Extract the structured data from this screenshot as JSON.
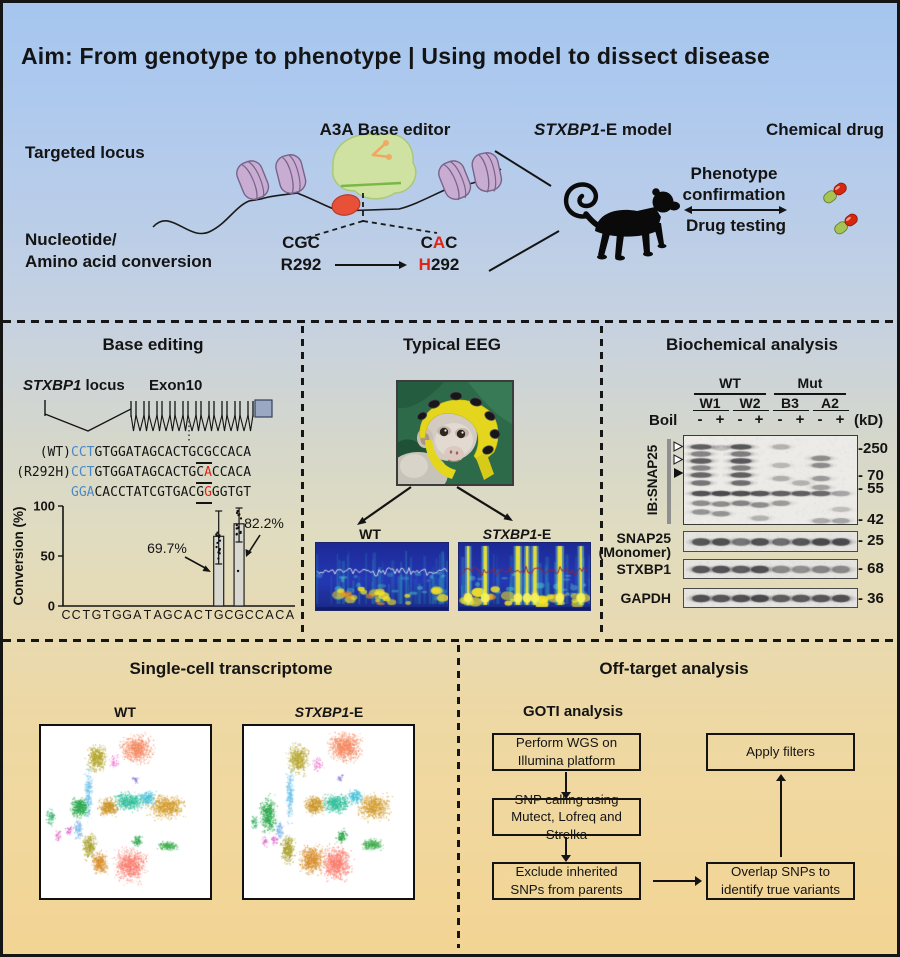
{
  "title": "Aim: From genotype to phenotype | Using model to dissect disease",
  "top": {
    "targeted_locus": "Targeted locus",
    "editor_label": "A3A Base editor",
    "conversion_label": [
      "Nucleotide/",
      "Amino acid conversion"
    ],
    "codon_wt": "CGC",
    "codon_mut": {
      "pre": "C",
      "red": "A",
      "post": "C"
    },
    "aa_wt": "R292",
    "aa_mut": {
      "red": "H",
      "post": "292"
    },
    "model_label": {
      "italic": "STXBP1",
      "rest": "-E model"
    },
    "chemical_drug": "Chemical drug",
    "phenotype_confirmation": [
      "Phenotype",
      "confirmation"
    ],
    "drug_testing": "Drug testing"
  },
  "base_editing": {
    "title": "Base editing",
    "locus_label": {
      "italic": "STXBP1",
      "rest": " locus"
    },
    "exon_label": "Exon10",
    "seq_lines": [
      {
        "prefix": "(WT)",
        "segments": [
          {
            "t": "CCT",
            "c": "blue"
          },
          {
            "t": "GTGGATAGCACTG"
          },
          {
            "t": "CG",
            "u": true
          },
          {
            "t": "CCACA"
          }
        ]
      },
      {
        "prefix": "(R292H)",
        "segments": [
          {
            "t": "CCT",
            "c": "blue"
          },
          {
            "t": "GTGGATAGCACTG"
          },
          {
            "t": "C",
            "u": true
          },
          {
            "t": "A",
            "u": true,
            "c": "red"
          },
          {
            "t": "CCACA"
          }
        ]
      },
      {
        "prefix": "",
        "segments": [
          {
            "t": "GGA",
            "c": "blue"
          },
          {
            "t": "CACCTATCGTGAC"
          },
          {
            "t": "G",
            "u": true
          },
          {
            "t": "G",
            "u": true,
            "c": "red"
          },
          {
            "t": "GGTGT"
          }
        ]
      }
    ]
  },
  "chart_data": {
    "type": "bar",
    "title": "",
    "ylabel": "Conversion (%)",
    "xlabel": "",
    "ylim": [
      0,
      100
    ],
    "yticks": [
      0,
      50,
      100
    ],
    "grid": false,
    "bar_color": "#d9d8d0",
    "categories": [
      "C",
      "C",
      "T",
      "G",
      "T",
      "G",
      "G",
      "A",
      "T",
      "A",
      "G",
      "C",
      "A",
      "C",
      "T",
      "G",
      "C",
      "G",
      "C",
      "C",
      "A",
      "C",
      "A"
    ],
    "bars": [
      {
        "index": 15,
        "value": 69.7,
        "err_low": 42,
        "err_high": 95,
        "label": "69.7%"
      },
      {
        "index": 17,
        "value": 82.2,
        "err_low": 64,
        "err_high": 98,
        "label": "82.2%"
      }
    ]
  },
  "eeg": {
    "title": "Typical EEG",
    "wt_label": "WT",
    "mut_label": {
      "italic": "STXBP1",
      "rest": "-E"
    },
    "bg_color": "#2434ad",
    "blob_color": "#f2e32c",
    "spectrograms": [
      {
        "name": "wt",
        "seed": 5,
        "trace_color": "#d4d7e6",
        "spikes": []
      },
      {
        "name": "mut",
        "seed": 11,
        "trace_color": "#93253c",
        "spikes": [
          0.07,
          0.2,
          0.45,
          0.52,
          0.58,
          0.77,
          0.93
        ]
      }
    ]
  },
  "biochemical": {
    "title": "Biochemical analysis",
    "groups": [
      {
        "label": "WT",
        "samples": [
          "W1",
          "W2"
        ]
      },
      {
        "label": "Mut",
        "samples": [
          "B3",
          "A2"
        ]
      }
    ],
    "boil_label": "Boil",
    "boil_signs": [
      "-",
      "+",
      "-",
      "+",
      "-",
      "+",
      "-",
      "+"
    ],
    "kd_label": "(kD)",
    "ib_label": "IB:SNAP25",
    "main_markers": [
      "-250",
      "- 70",
      "- 55",
      "- 42"
    ],
    "lanes": [
      {
        "bands": [
          [
            0.09,
            0.8,
            1.2
          ],
          [
            0.17,
            0.55,
            1.15
          ],
          [
            0.25,
            0.8,
            1.2
          ],
          [
            0.33,
            0.55,
            1.1
          ],
          [
            0.41,
            0.75,
            1.2
          ],
          [
            0.5,
            0.65,
            1.1
          ],
          [
            0.62,
            0.9,
            1.05
          ],
          [
            0.73,
            0.5,
            1
          ],
          [
            0.83,
            0.45,
            1
          ]
        ]
      },
      {
        "bands": [
          [
            0.1,
            0.22,
            1
          ],
          [
            0.62,
            0.95,
            1.05
          ],
          [
            0.74,
            0.5,
            1
          ],
          [
            0.85,
            0.45,
            1
          ]
        ]
      },
      {
        "bands": [
          [
            0.09,
            0.85,
            1.2
          ],
          [
            0.17,
            0.6,
            1.15
          ],
          [
            0.25,
            0.85,
            1.2
          ],
          [
            0.33,
            0.6,
            1.1
          ],
          [
            0.41,
            0.8,
            1.2
          ],
          [
            0.5,
            0.7,
            1.1
          ],
          [
            0.62,
            0.9,
            1.05
          ],
          [
            0.73,
            0.55,
            1
          ]
        ]
      },
      {
        "bands": [
          [
            0.62,
            0.85,
            1.05
          ],
          [
            0.75,
            0.5,
            1
          ],
          [
            0.9,
            0.28,
            1
          ]
        ]
      },
      {
        "bands": [
          [
            0.09,
            0.28,
            1
          ],
          [
            0.3,
            0.25,
            1
          ],
          [
            0.45,
            0.3,
            1
          ],
          [
            0.62,
            0.78,
            1.05
          ],
          [
            0.73,
            0.42,
            1
          ]
        ]
      },
      {
        "bands": [
          [
            0.5,
            0.28,
            1
          ],
          [
            0.62,
            0.8,
            1.05
          ]
        ]
      },
      {
        "bands": [
          [
            0.22,
            0.5,
            1.1
          ],
          [
            0.3,
            0.5,
            1.05
          ],
          [
            0.45,
            0.42,
            1
          ],
          [
            0.55,
            0.38,
            1
          ],
          [
            0.62,
            0.72,
            1.05
          ],
          [
            0.93,
            0.32,
            1
          ]
        ]
      },
      {
        "bands": [
          [
            0.62,
            0.35,
            1
          ],
          [
            0.8,
            0.22,
            1
          ],
          [
            0.93,
            0.35,
            1
          ]
        ]
      }
    ],
    "strips": [
      {
        "label_lines": [
          "SNAP25",
          "(Monomer)"
        ],
        "marker": "- 25",
        "bands": [
          0.85,
          0.9,
          0.62,
          0.9,
          0.68,
          0.85,
          0.95,
          0.95
        ]
      },
      {
        "label_lines": [
          "STXBP1"
        ],
        "marker": "- 68",
        "bands": [
          0.85,
          0.88,
          0.8,
          0.9,
          0.5,
          0.45,
          0.52,
          0.5
        ]
      },
      {
        "label_lines": [
          "GAPDH"
        ],
        "marker": "- 36",
        "bands": [
          0.9,
          0.85,
          0.9,
          0.95,
          0.8,
          0.82,
          0.85,
          0.9
        ]
      }
    ]
  },
  "single_cell": {
    "title": "Single-cell transcriptome",
    "wt_label": "WT",
    "mut_label": {
      "italic": "STXBP1",
      "rest": "-E"
    },
    "clusters": [
      {
        "color": "#f4875f",
        "wt": [
          0.57,
          0.13,
          0.085,
          0.075,
          700
        ],
        "mut": [
          0.6,
          0.12,
          0.09,
          0.08,
          800
        ]
      },
      {
        "color": "#b3a42a",
        "wt": [
          0.33,
          0.185,
          0.055,
          0.075,
          450
        ],
        "mut": [
          0.32,
          0.19,
          0.06,
          0.08,
          500
        ]
      },
      {
        "color": "#ef6fd0",
        "wt": [
          0.43,
          0.21,
          0.03,
          0.04,
          50
        ],
        "mut": [
          0.44,
          0.22,
          0.035,
          0.045,
          60
        ]
      },
      {
        "color": "#6fc3ea",
        "wt": [
          0.28,
          0.4,
          0.022,
          0.14,
          260
        ],
        "mut": [
          0.27,
          0.4,
          0.022,
          0.14,
          260
        ]
      },
      {
        "color": "#2aa84c",
        "wt": [
          0.225,
          0.475,
          0.05,
          0.055,
          400
        ],
        "mut": [
          0.14,
          0.52,
          0.045,
          0.1,
          500
        ]
      },
      {
        "color": "#34b06a",
        "wt": [
          0.055,
          0.53,
          0.025,
          0.05,
          90
        ],
        "mut": [
          0.06,
          0.56,
          0.02,
          0.04,
          60
        ]
      },
      {
        "color": "#2fbf9a",
        "wt": [
          0.52,
          0.44,
          0.085,
          0.05,
          500
        ],
        "mut": [
          0.55,
          0.45,
          0.08,
          0.05,
          480
        ]
      },
      {
        "color": "#c99426",
        "wt": [
          0.4,
          0.475,
          0.055,
          0.05,
          380
        ],
        "mut": [
          0.42,
          0.46,
          0.06,
          0.05,
          380
        ]
      },
      {
        "color": "#d29b2b",
        "wt": [
          0.745,
          0.47,
          0.1,
          0.065,
          700
        ],
        "mut": [
          0.77,
          0.47,
          0.09,
          0.07,
          650
        ]
      },
      {
        "color": "#49c3d8",
        "wt": [
          0.63,
          0.42,
          0.045,
          0.04,
          220
        ],
        "mut": [
          0.66,
          0.41,
          0.045,
          0.04,
          220
        ]
      },
      {
        "color": "#2ca54a",
        "wt": [
          0.57,
          0.67,
          0.025,
          0.03,
          90
        ],
        "mut": [
          0.58,
          0.64,
          0.03,
          0.035,
          120
        ]
      },
      {
        "color": "#3fae4e",
        "wt": [
          0.75,
          0.7,
          0.055,
          0.025,
          200
        ],
        "mut": [
          0.76,
          0.69,
          0.06,
          0.03,
          260
        ]
      },
      {
        "color": "#f97c6d",
        "wt": [
          0.53,
          0.81,
          0.09,
          0.09,
          800
        ],
        "mut": [
          0.55,
          0.8,
          0.085,
          0.09,
          800
        ]
      },
      {
        "color": "#a9a12e",
        "wt": [
          0.285,
          0.7,
          0.04,
          0.07,
          300
        ],
        "mut": [
          0.26,
          0.72,
          0.04,
          0.08,
          350
        ]
      },
      {
        "color": "#d78f2e",
        "wt": [
          0.345,
          0.8,
          0.045,
          0.06,
          350
        ],
        "mut": [
          0.4,
          0.78,
          0.07,
          0.08,
          600
        ]
      },
      {
        "color": "#d857c9",
        "wt": [
          0.165,
          0.61,
          0.02,
          0.03,
          40
        ],
        "mut": [
          0.18,
          0.66,
          0.02,
          0.03,
          40
        ]
      },
      {
        "color": "#8f7ad8",
        "wt": [
          0.56,
          0.31,
          0.02,
          0.025,
          30
        ],
        "mut": [
          0.57,
          0.3,
          0.02,
          0.025,
          30
        ]
      },
      {
        "color": "#7cb6e8",
        "wt": [
          0.22,
          0.6,
          0.025,
          0.06,
          120
        ],
        "mut": [
          0.21,
          0.6,
          0.02,
          0.05,
          100
        ]
      },
      {
        "color": "#e06ac0",
        "wt": [
          0.1,
          0.64,
          0.02,
          0.035,
          40
        ],
        "mut": [
          0.12,
          0.67,
          0.02,
          0.03,
          40
        ]
      }
    ]
  },
  "off_target": {
    "title": "Off-target analysis",
    "subtitle": "GOTI analysis",
    "boxes": {
      "wgs": "Perform WGS on Illumina platform",
      "snp": "SNP calling using Mutect, Lofreq and Strelka",
      "exclude": "Exclude inherited SNPs from parents",
      "overlap": "Overlap SNPs to identify true variants",
      "filters": "Apply filters"
    }
  },
  "colors": {
    "seq_blue": "#4a88c8",
    "seq_red": "#e02417",
    "editor_green": "#cfe2a2",
    "nucleosome": "#c9acd2",
    "pam_red": "#e85038",
    "exon_box": "#9aa8c4"
  }
}
